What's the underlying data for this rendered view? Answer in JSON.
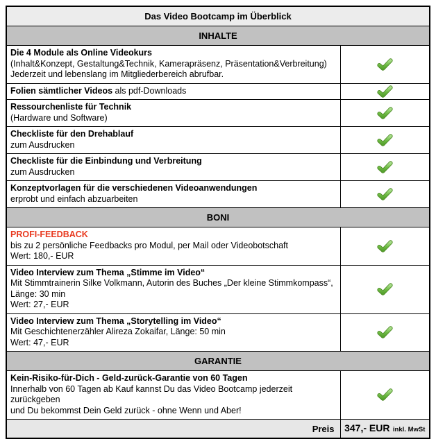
{
  "page_title": "Das Video Bootcamp im Überblick",
  "colors": {
    "title_row_bg": "#ececec",
    "section_header_bg": "#c1c1c1",
    "price_row_bg": "#e7e7e7",
    "border": "#000000",
    "highlight_red": "#e8391f",
    "check_green": "#5fae35"
  },
  "check_icon": "green-checkmark",
  "sections": [
    {
      "header": "INHALTE",
      "rows": [
        {
          "title": "Die 4 Module als Online Videokurs",
          "lines": [
            "(Inhalt&Konzept, Gestaltung&Technik, Kamerapräsenz, Präsentation&Verbreitung)",
            "Jederzeit und lebenslang im Mitgliederbereich abrufbar."
          ],
          "checked": true
        },
        {
          "title": "Folien sämtlicher Videos",
          "title_rest": " als pdf-Downloads",
          "lines": [],
          "checked": true
        },
        {
          "title": "Ressourchenliste für Technik",
          "lines": [
            "(Hardware und Software)"
          ],
          "checked": true
        },
        {
          "title": "Checkliste für den Drehablauf",
          "lines": [
            "zum Ausdrucken"
          ],
          "checked": true
        },
        {
          "title": "Checkliste für die Einbindung und Verbreitung",
          "lines": [
            "zum Ausdrucken"
          ],
          "checked": true
        },
        {
          "title": "Konzeptvorlagen für die verschiedenen Videoanwendungen",
          "lines": [
            "erprobt und einfach abzuarbeiten"
          ],
          "checked": true
        }
      ]
    },
    {
      "header": "BONI",
      "rows": [
        {
          "title": "PROFI-FEEDBACK",
          "red": true,
          "lines": [
            "bis zu 2 persönliche Feedbacks pro Modul, per Mail oder Videobotschaft",
            "Wert: 180,- EUR"
          ],
          "checked": true
        },
        {
          "title": "Video Interview zum Thema „Stimme im Video“",
          "lines": [
            "Mit Stimmtrainerin Silke Volkmann, Autorin des Buches „Der kleine Stimmkompass“,",
            "Länge: 30 min",
            "Wert: 27,- EUR"
          ],
          "checked": true
        },
        {
          "title": "Video Interview zum Thema „Storytelling im Video“",
          "lines": [
            "Mit Geschichtenerzähler Alireza Zokaifar, Länge: 50 min",
            "Wert: 47,- EUR"
          ],
          "checked": true
        }
      ]
    },
    {
      "header": "GARANTIE",
      "rows": [
        {
          "title": "Kein-Risiko-für-Dich - Geld-zurück-Garantie von 60 Tagen",
          "lines": [
            "Innerhalb von 60 Tagen ab Kauf kannst Du das Video Bootcamp jederzeit zurückgeben",
            "und Du bekommst Dein Geld zurück - ohne Wenn und Aber!"
          ],
          "checked": true
        }
      ]
    }
  ],
  "price_row": {
    "label": "Preis",
    "amount": "347,- EUR",
    "tax_note": "inkl. MwSt"
  }
}
